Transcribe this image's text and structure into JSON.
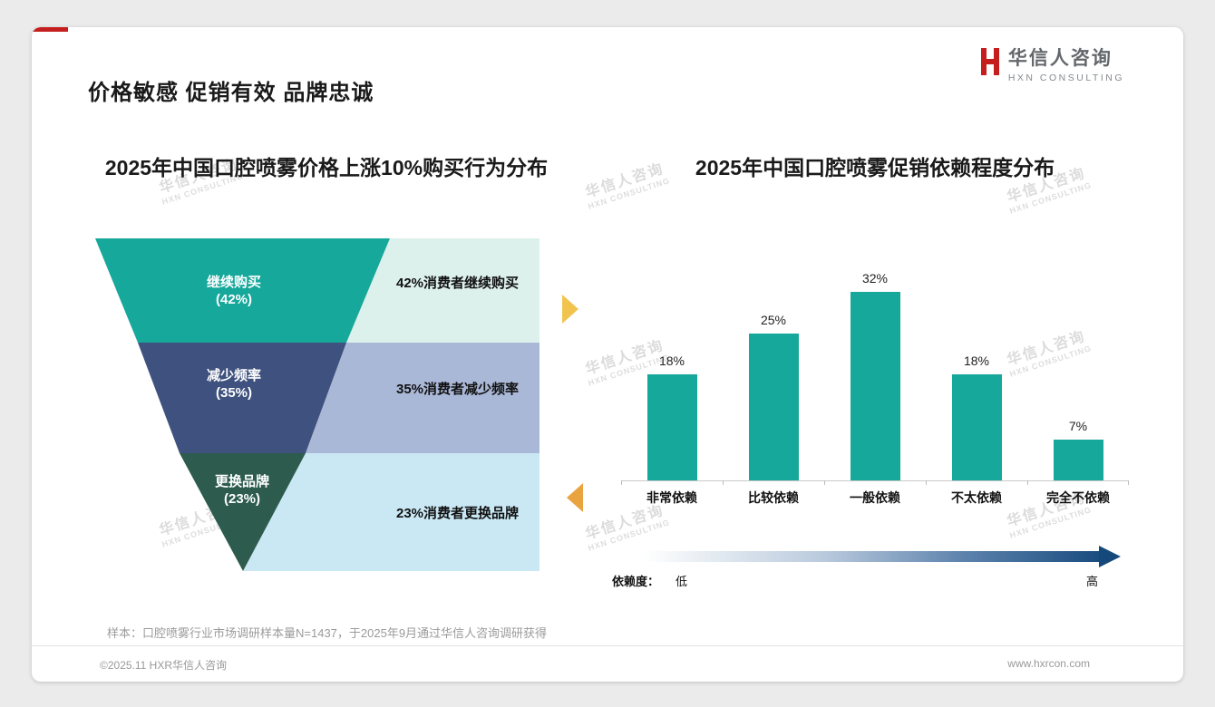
{
  "page": {
    "heading": "价格敏感 促销有效 品牌忠诚",
    "logo": {
      "name": "华信人咨询",
      "sub": "HXN CONSULTING",
      "accent_color": "#c41e1e"
    },
    "watermark": {
      "line1": "华信人咨询",
      "line2": "HXN CONSULTING"
    },
    "footnote": "样本：口腔喷雾行业市场调研样本量N=1437，于2025年9月通过华信人咨询调研获得",
    "footer_left": "©2025.11 HXR华信人咨询",
    "footer_right": "www.hxrcon.com"
  },
  "chart_data": [
    {
      "type": "funnel",
      "title": "2025年中国口腔喷雾价格上涨10%购买行为分布",
      "segments": [
        {
          "label": "继续购买",
          "pct": "(42%)",
          "value": 42,
          "desc": "42%消费者继续购买",
          "color": "#16a89b",
          "bg": "#dcf0ec"
        },
        {
          "label": "减少频率",
          "pct": "(35%)",
          "value": 35,
          "desc": "35%消费者减少频率",
          "color": "#3f517e",
          "bg": "#aab8d8"
        },
        {
          "label": "更换品牌",
          "pct": "(23%)",
          "value": 23,
          "desc": "23%消费者更换品牌",
          "color": "#2d5c4e",
          "bg": "#c9e8f4"
        }
      ]
    },
    {
      "type": "bar",
      "title": "2025年中国口腔喷雾促销依赖程度分布",
      "categories": [
        "非常依赖",
        "比较依赖",
        "一般依赖",
        "不太依赖",
        "完全不依赖"
      ],
      "values": [
        18,
        25,
        32,
        18,
        7
      ],
      "value_labels": [
        "18%",
        "25%",
        "32%",
        "18%",
        "7%"
      ],
      "bar_color": "#16a89b",
      "ylim": [
        0,
        35
      ],
      "legend": "none",
      "axis_note": {
        "label": "依赖度：",
        "low": "低",
        "high": "高"
      }
    }
  ]
}
